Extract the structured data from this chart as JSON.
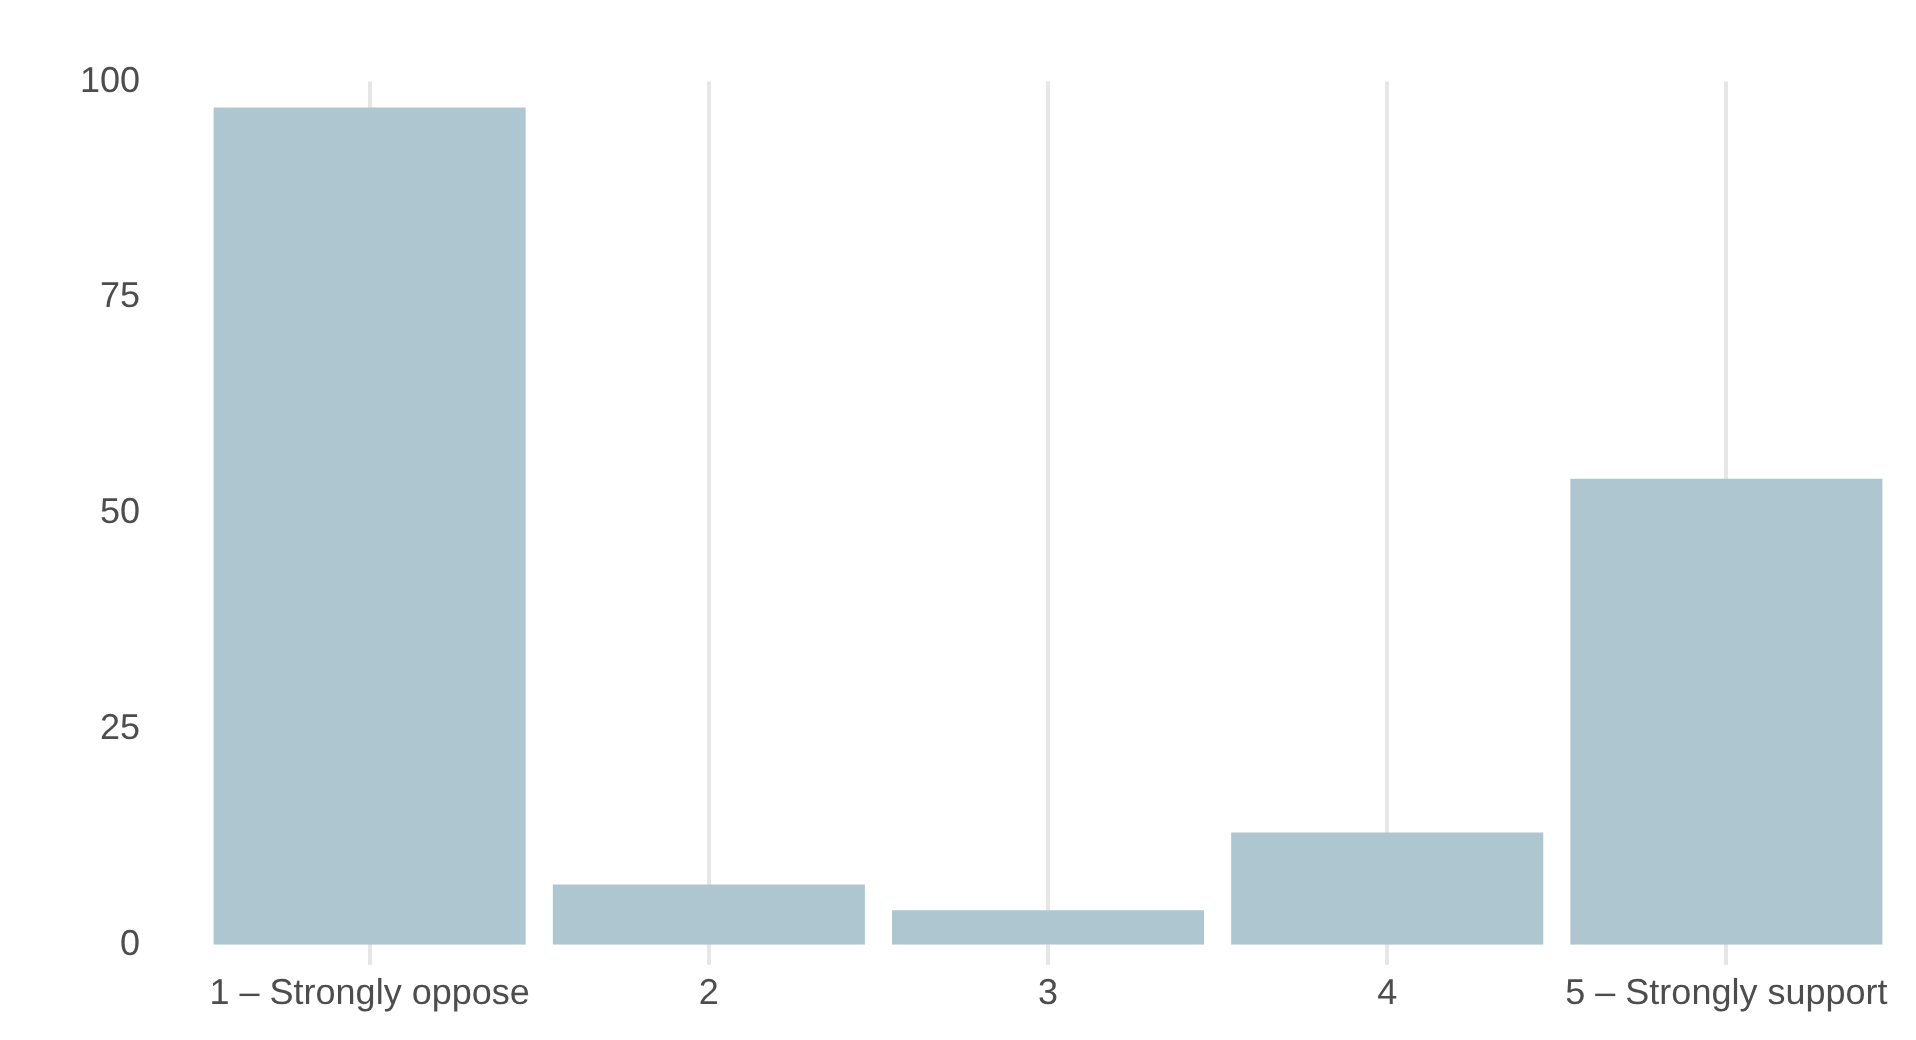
{
  "chart_data": {
    "type": "bar",
    "categories": [
      "1 – Strongly oppose",
      "2",
      "3",
      "4",
      "5 – Strongly support"
    ],
    "values": [
      97,
      7,
      4,
      13,
      54
    ],
    "color": "#adc6cf",
    "ylim": [
      0,
      100
    ],
    "yticks": [
      0,
      25,
      50,
      75,
      100
    ],
    "grid": "x"
  }
}
